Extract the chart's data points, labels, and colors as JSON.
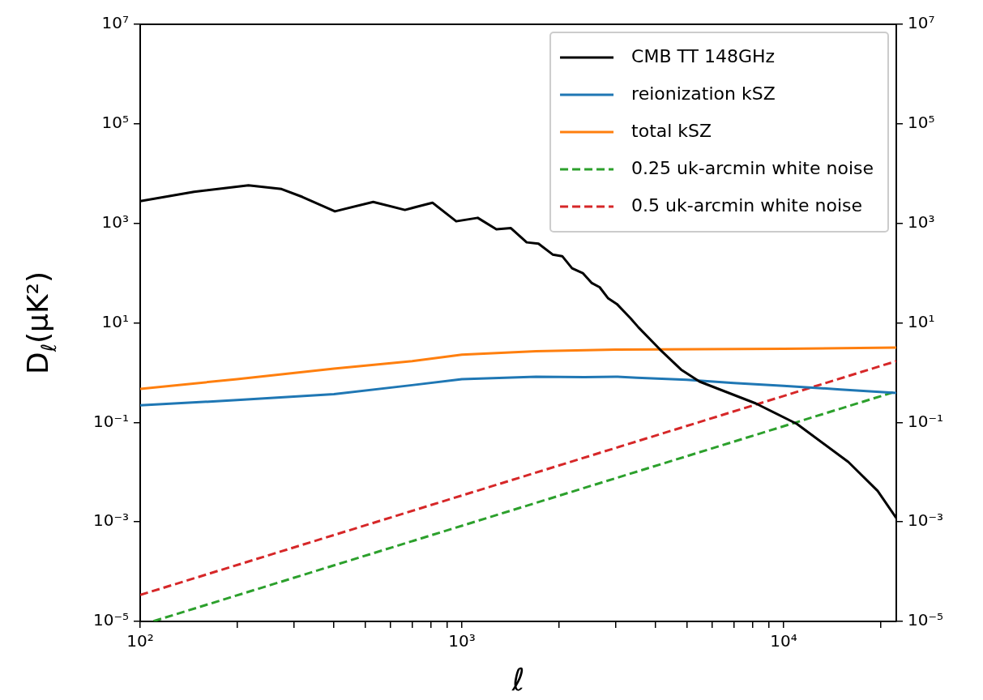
{
  "chart_data": {
    "type": "line",
    "xlabel": "ℓ",
    "ylabel": "D$_{ℓ}$(μK²)",
    "log": "xy",
    "legend": "top right",
    "line_style": "solid",
    "xlim": [
      100,
      22400
    ],
    "ylim": [
      1e-05,
      10000000.0
    ],
    "xticks": [
      {
        "value": 100,
        "label": "10²"
      },
      {
        "value": 200,
        "label": null
      },
      {
        "value": 300,
        "label": null
      },
      {
        "value": 400,
        "label": null
      },
      {
        "value": 500,
        "label": null
      },
      {
        "value": 600,
        "label": null
      },
      {
        "value": 700,
        "label": null
      },
      {
        "value": 800,
        "label": null
      },
      {
        "value": 900,
        "label": null
      },
      {
        "value": 1000,
        "label": "10³"
      },
      {
        "value": 2000,
        "label": null
      },
      {
        "value": 3000,
        "label": null
      },
      {
        "value": 4000,
        "label": null
      },
      {
        "value": 5000,
        "label": null
      },
      {
        "value": 6000,
        "label": null
      },
      {
        "value": 7000,
        "label": null
      },
      {
        "value": 8000,
        "label": null
      },
      {
        "value": 9000,
        "label": null
      },
      {
        "value": 10000,
        "label": "10⁴"
      },
      {
        "value": 20000,
        "label": null
      }
    ],
    "yticks": [
      {
        "value": 1e-05,
        "label": "10⁻⁵"
      },
      {
        "value": 0.001,
        "label": "10⁻³"
      },
      {
        "value": 0.1,
        "label": "10⁻¹"
      },
      {
        "value": 10,
        "label": "10¹"
      },
      {
        "value": 1000,
        "label": "10³"
      },
      {
        "value": 100000,
        "label": "10⁵"
      },
      {
        "value": 10000000.0,
        "label": "10⁷"
      }
    ],
    "series": [
      {
        "name": "CMB TT 148GHz",
        "color": "#000000",
        "x": [
          100,
          147,
          217,
          275,
          319,
          403,
          530,
          665,
          810,
          960,
          1120,
          1280,
          1420,
          1590,
          1730,
          1915,
          2050,
          2200,
          2375,
          2535,
          2680,
          2850,
          3030,
          3350,
          3540,
          4120,
          4800,
          5480,
          8200,
          11000,
          15900,
          19600,
          22400
        ],
        "values": [
          2800,
          4300,
          5800,
          4900,
          3400,
          1740,
          2700,
          1860,
          2600,
          1100,
          1290,
          760,
          800,
          415,
          390,
          236,
          219,
          125,
          100,
          63,
          52,
          31,
          24,
          12.2,
          8.1,
          2.95,
          1.15,
          0.66,
          0.24,
          0.093,
          0.016,
          0.0042,
          0.0012
        ]
      },
      {
        "name": "reionization kSZ",
        "color": "#1f77b4",
        "x": [
          100,
          200,
          400,
          700,
          1000,
          1700,
          2400,
          3000,
          3500,
          5000,
          7000,
          10000,
          15000,
          22400
        ],
        "values": [
          0.22,
          0.28,
          0.37,
          0.56,
          0.74,
          0.83,
          0.81,
          0.83,
          0.79,
          0.72,
          0.62,
          0.54,
          0.46,
          0.39
        ]
      },
      {
        "name": "total kSZ",
        "color": "#ff7f0e",
        "x": [
          100,
          200,
          400,
          700,
          1000,
          1700,
          3000,
          10000,
          22400
        ],
        "values": [
          0.47,
          0.74,
          1.2,
          1.7,
          2.3,
          2.7,
          2.9,
          3.0,
          3.2
        ]
      },
      {
        "name": "0.25 uk-arcmin white noise",
        "color": "#2ca02c",
        "line_style": "dashed",
        "x": [
          110,
          22400
        ],
        "values": [
          1.01e-05,
          0.42
        ]
      },
      {
        "name": "0.5 uk-arcmin white noise",
        "color": "#d62728",
        "line_style": "dashed",
        "x": [
          100,
          22400
        ],
        "values": [
          3.4e-05,
          1.7
        ]
      }
    ]
  }
}
